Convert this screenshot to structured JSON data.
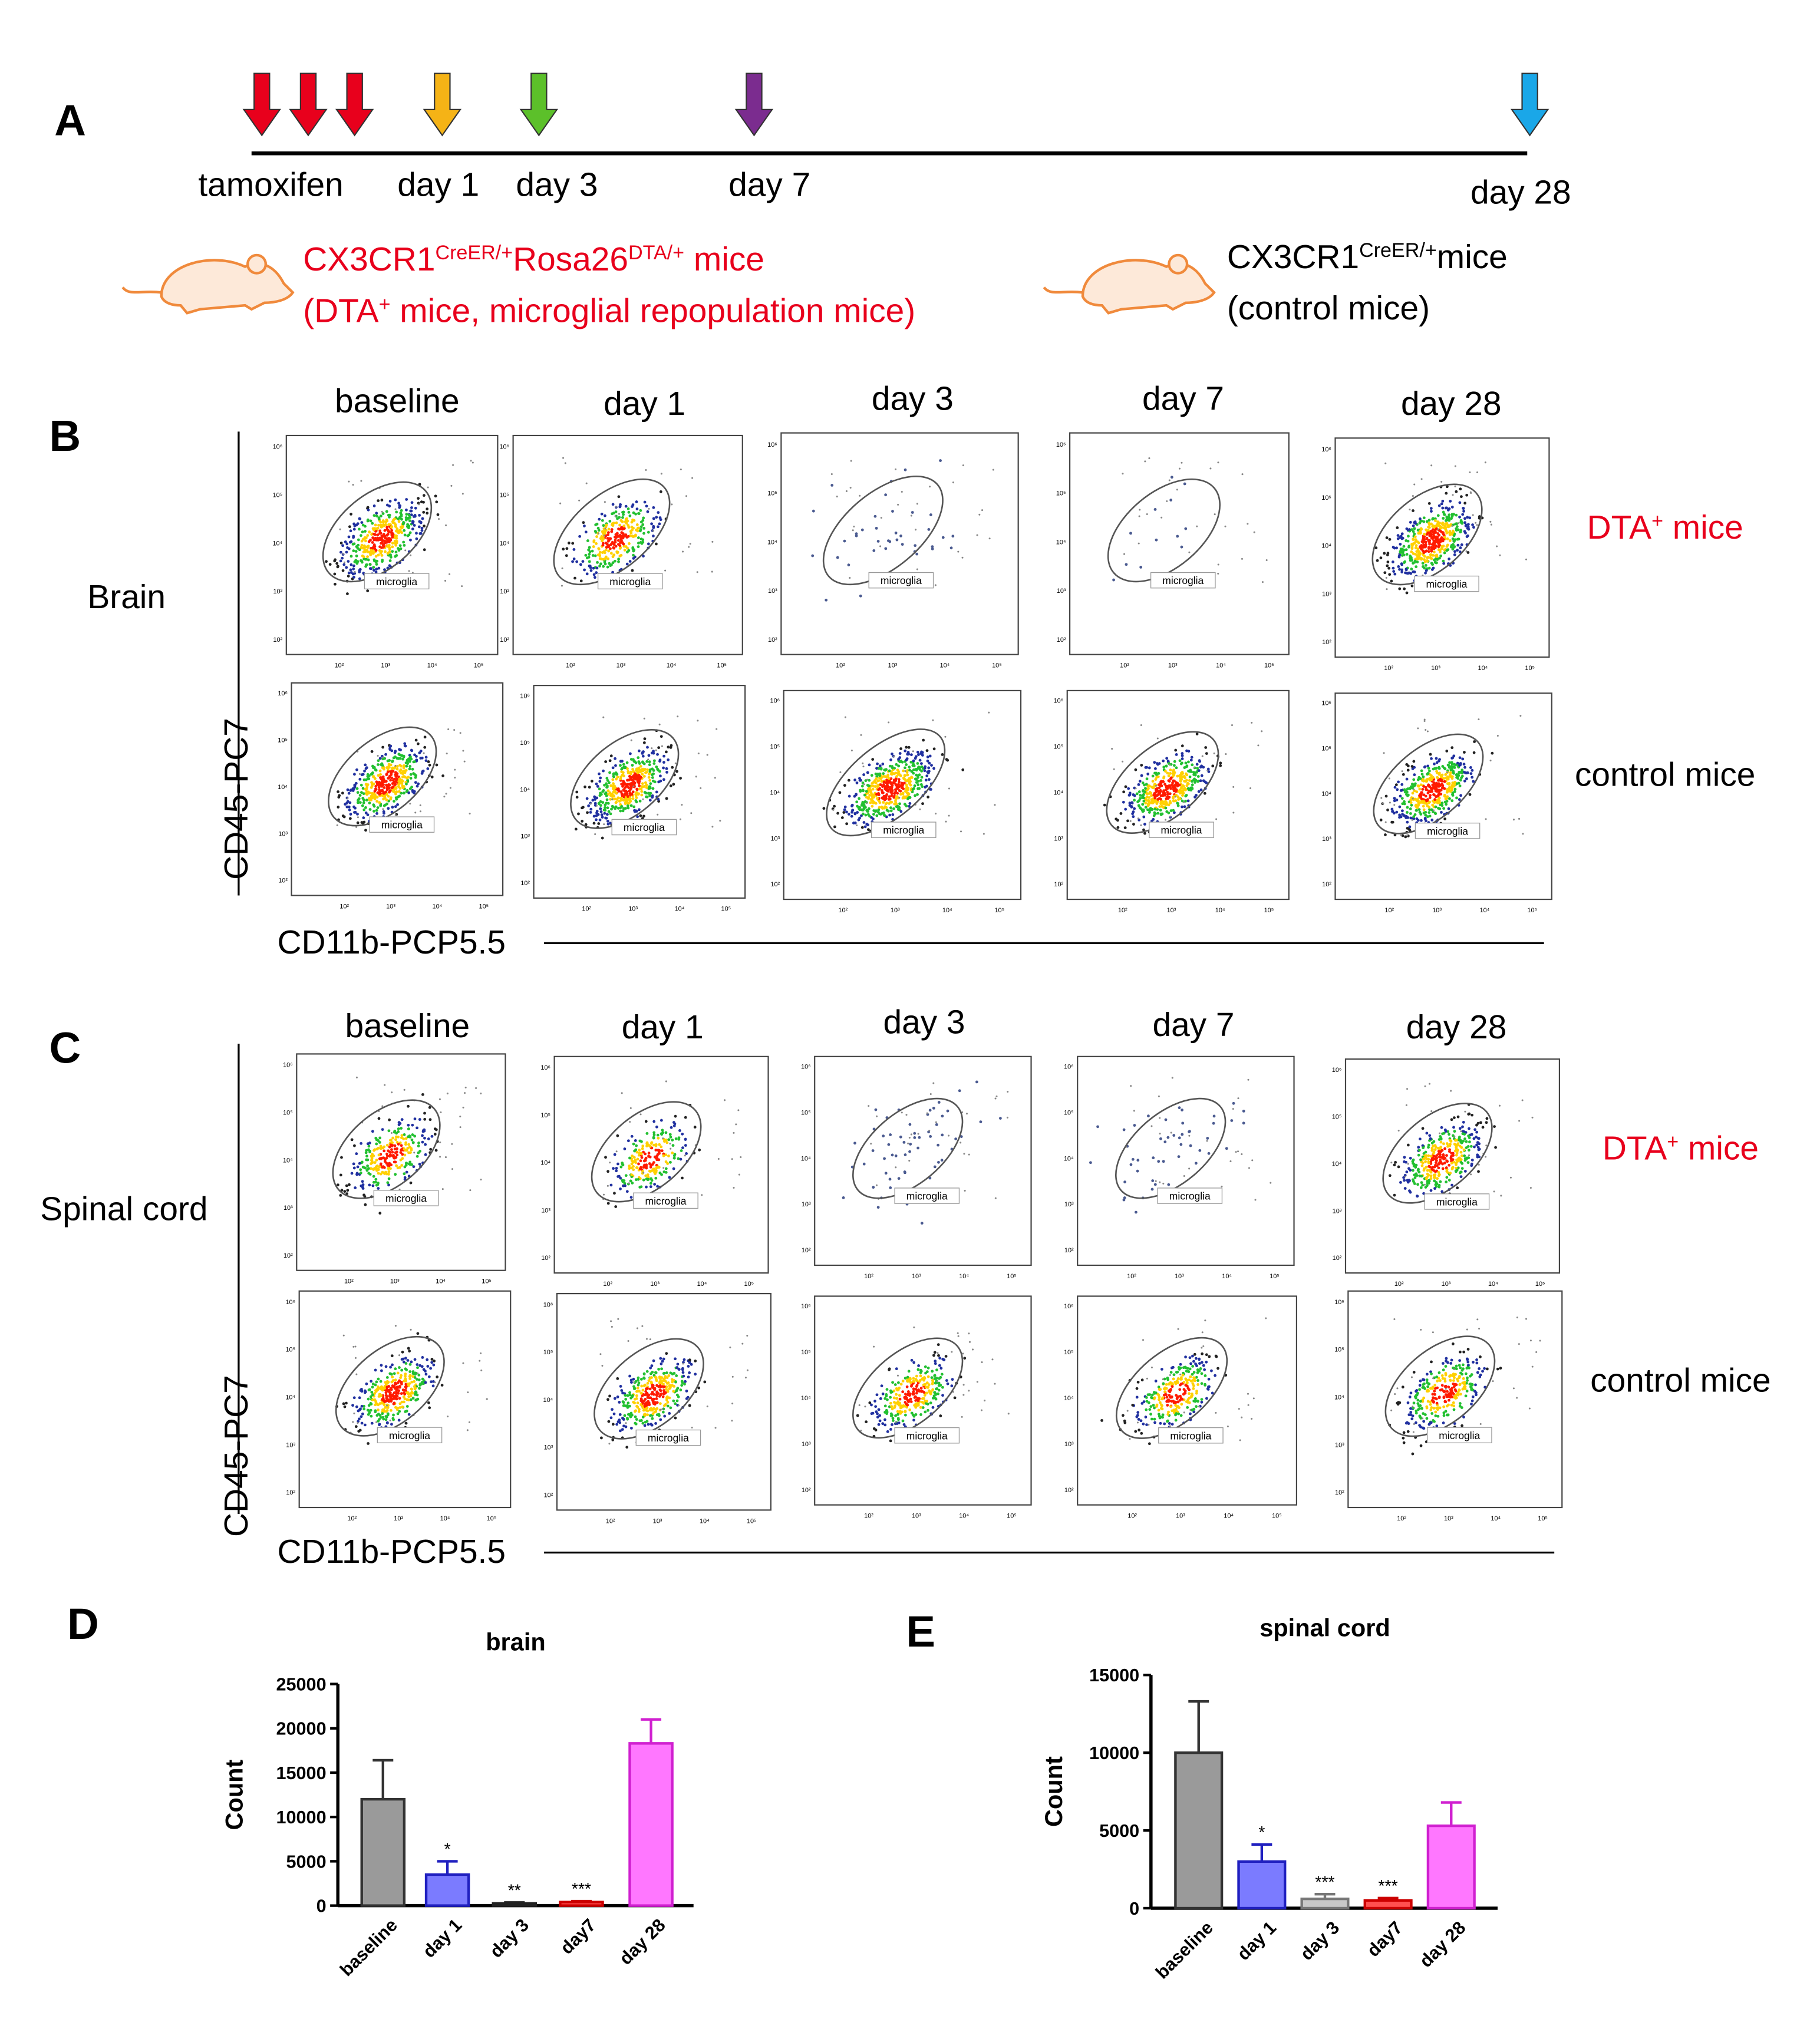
{
  "panel_a": {
    "letter": "A",
    "timeline_labels": [
      "tamoxifen",
      "day 1",
      "day 3",
      "day 7",
      "day 28"
    ],
    "arrow_colors": [
      "#e8001c",
      "#e8001c",
      "#e8001c",
      "#f5b316",
      "#5cc02a",
      "#7b2c8f",
      "#1aa7e8"
    ],
    "dta_mice": {
      "line1": [
        "CX3CR1",
        "CreER/+",
        "Rosa26",
        "DTA/+",
        " mice"
      ],
      "line2": [
        "(DTA",
        "+",
        " mice, microglial repopulation mice)"
      ]
    },
    "control_mice": {
      "line1": [
        "CX3CR1",
        "CreER/+",
        "mice"
      ],
      "line2": "(control mice)"
    }
  },
  "panel_b": {
    "letter": "B",
    "tissue": "Brain",
    "columns": [
      "baseline",
      "day 1",
      "day 3",
      "day 7",
      "day 28"
    ],
    "row_dta": [
      "DTA",
      "+",
      " mice"
    ],
    "row_control": "control mice",
    "y_axis": "CD45-PC7",
    "x_axis": "CD11b-PCP5.5"
  },
  "panel_c": {
    "letter": "C",
    "tissue": "Spinal cord",
    "columns": [
      "baseline",
      "day 1",
      "day 3",
      "day 7",
      "day 28"
    ],
    "row_dta": [
      "DTA",
      "+",
      " mice"
    ],
    "row_control": "control mice",
    "y_axis": "CD45-PC7",
    "x_axis": "CD11b-PCP5.5"
  },
  "flow": {
    "gate": "microglia",
    "ticks": [
      "10²",
      "10³",
      "10⁴",
      "10⁵",
      "10⁶"
    ]
  },
  "chart_data": [
    {
      "type": "bar",
      "panel_label": "D",
      "title": "brain",
      "y_label": "Count",
      "categories": [
        "baseline",
        "day 1",
        "day 3",
        "day7",
        "day 28"
      ],
      "values": [
        12000,
        3500,
        250,
        400,
        18300
      ],
      "errors": [
        4400,
        1500,
        100,
        100,
        2700
      ],
      "annotations": [
        null,
        "*",
        "**",
        "***",
        null
      ],
      "colors": [
        "#9a9a9a",
        "#7b7bff",
        "#8a8a8a",
        "#ff5050",
        "#ff77ff"
      ],
      "edge_colors": [
        "#333333",
        "#2020c0",
        "#222222",
        "#cc0000",
        "#d020d0"
      ],
      "ylim": [
        0,
        25000
      ],
      "yticks": [
        0,
        5000,
        10000,
        15000,
        20000,
        25000
      ]
    },
    {
      "type": "bar",
      "panel_label": "E",
      "title": "spinal cord",
      "y_label": "Count",
      "categories": [
        "baseline",
        "day 1",
        "day 3",
        "day7",
        "day 28"
      ],
      "values": [
        10000,
        3000,
        600,
        500,
        5300
      ],
      "errors": [
        3300,
        1100,
        300,
        150,
        1500
      ],
      "annotations": [
        null,
        "*",
        "***",
        "***",
        null
      ],
      "colors": [
        "#9a9a9a",
        "#7b7bff",
        "#c8c8c8",
        "#ff5050",
        "#ff77ff"
      ],
      "edge_colors": [
        "#333333",
        "#2020c0",
        "#777777",
        "#cc0000",
        "#d020d0"
      ],
      "ylim": [
        0,
        15000
      ],
      "yticks": [
        0,
        5000,
        10000,
        15000
      ]
    }
  ]
}
